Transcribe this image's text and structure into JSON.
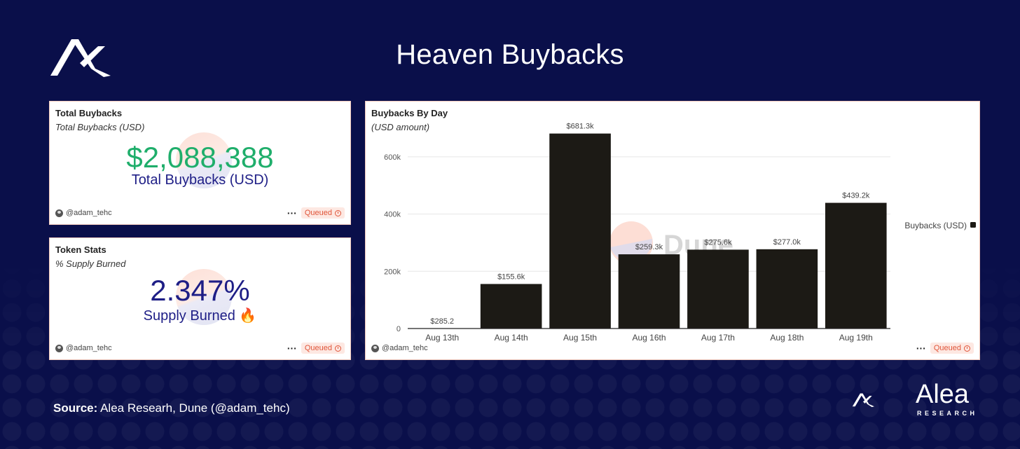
{
  "page": {
    "title": "Heaven Buybacks",
    "source_label": "Source:",
    "source_text": "Alea Researh, Dune (@adam_tehc)",
    "brand_name": "Alea",
    "brand_sub": "RESEARCH"
  },
  "panels": {
    "total_buybacks": {
      "title": "Total Buybacks",
      "subtitle": "Total Buybacks (USD)",
      "value": "$2,088,388",
      "label": "Total Buybacks (USD)",
      "value_color": "#1fae6b",
      "author": "@adam_tehc",
      "status": "Queued"
    },
    "token_stats": {
      "title": "Token Stats",
      "subtitle": "% Supply Burned",
      "value": "2.347%",
      "label": "Supply Burned 🔥",
      "value_color": "#1e1e86",
      "author": "@adam_tehc",
      "status": "Queued"
    },
    "buybacks_by_day": {
      "title": "Buybacks By Day",
      "subtitle": "(USD amount)",
      "author": "@adam_tehc",
      "status": "Queued",
      "watermark": "Dune"
    }
  },
  "chart_data": {
    "type": "bar",
    "categories": [
      "Aug 13th",
      "Aug 14th",
      "Aug 15th",
      "Aug 16th",
      "Aug 17th",
      "Aug 18th",
      "Aug 19th"
    ],
    "series": [
      {
        "name": "Buybacks (USD)",
        "values": [
          285.2,
          155600,
          681300,
          259300,
          275600,
          277000,
          439200
        ],
        "labels": [
          "$285.2",
          "$155.6k",
          "$681.3k",
          "$259.3k",
          "$275.6k",
          "$277.0k",
          "$439.2k"
        ],
        "color": "#1c1a15"
      }
    ],
    "y_ticks": [
      0,
      200000,
      400000,
      600000
    ],
    "y_tick_labels": [
      "0",
      "200k",
      "400k",
      "600k"
    ],
    "ylim": [
      0,
      700000
    ],
    "grid": true,
    "legend": "right"
  },
  "colors": {
    "background": "#0a0f4a",
    "queued_badge": "#e0553a",
    "panel_border": "#f2c9bd"
  },
  "icons": {
    "top_logo": "alea-logo-icon",
    "author_avatar": "avatar-icon",
    "more": "more-icon",
    "queued": "clock-icon"
  }
}
